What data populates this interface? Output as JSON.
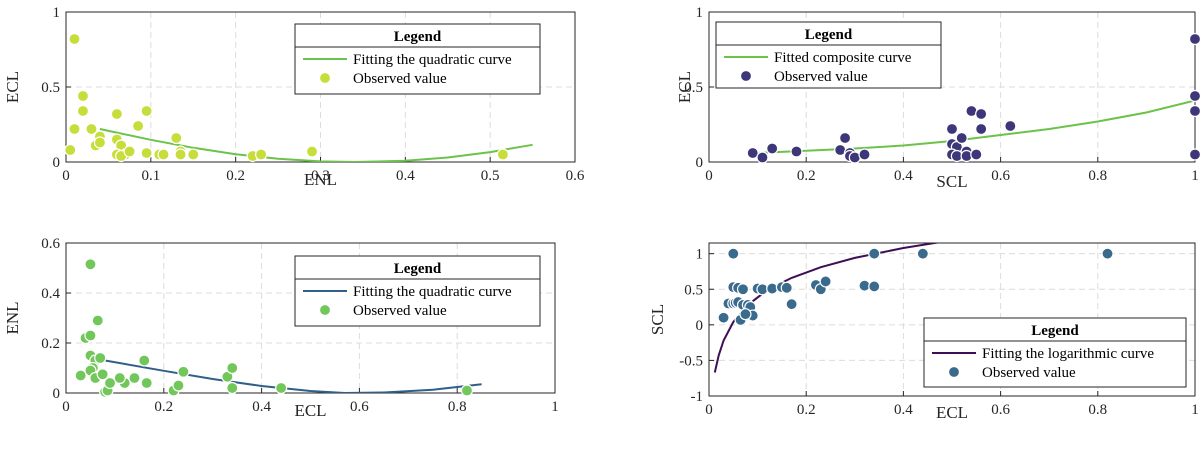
{
  "chart_data": [
    {
      "type": "scatter",
      "xlabel": "ENL",
      "ylabel": "ECL",
      "xlim": [
        0,
        0.6
      ],
      "ylim": [
        0,
        1
      ],
      "xticks": [
        "0",
        "0.1",
        "0.2",
        "0.3",
        "0.4",
        "0.5",
        "0.6"
      ],
      "yticks": [
        "0",
        "0.5",
        "1"
      ],
      "grid": true,
      "legend": {
        "title": "Legend",
        "placement": "top-right",
        "entries": [
          "Fitting the quadratic curve",
          "Observed value"
        ]
      },
      "fit": {
        "name": "Fitting the quadratic curve",
        "model": "quadratic",
        "color": "#6cc24a",
        "x": [
          0.04,
          0.1,
          0.15,
          0.2,
          0.25,
          0.3,
          0.34,
          0.4,
          0.45,
          0.5,
          0.55
        ],
        "y": [
          0.22,
          0.148,
          0.095,
          0.052,
          0.021,
          0.004,
          0.0,
          0.008,
          0.03,
          0.066,
          0.115
        ]
      },
      "series": [
        {
          "name": "Observed value",
          "color": "#c6dd3a",
          "x": [
            0.01,
            0.005,
            0.01,
            0.02,
            0.02,
            0.03,
            0.04,
            0.035,
            0.04,
            0.06,
            0.06,
            0.065,
            0.07,
            0.06,
            0.065,
            0.075,
            0.085,
            0.095,
            0.095,
            0.11,
            0.115,
            0.13,
            0.135,
            0.135,
            0.15,
            0.22,
            0.23,
            0.29,
            0.515
          ],
          "y": [
            0.82,
            0.08,
            0.22,
            0.44,
            0.34,
            0.22,
            0.17,
            0.11,
            0.13,
            0.32,
            0.15,
            0.11,
            0.05,
            0.05,
            0.04,
            0.07,
            0.24,
            0.34,
            0.06,
            0.05,
            0.05,
            0.16,
            0.07,
            0.05,
            0.05,
            0.04,
            0.05,
            0.07,
            0.05
          ]
        }
      ]
    },
    {
      "type": "scatter",
      "xlabel": "SCL",
      "ylabel": "ECL",
      "xlim": [
        0,
        1
      ],
      "ylim": [
        0,
        1
      ],
      "xticks": [
        "0",
        "0.2",
        "0.4",
        "0.6",
        "0.8",
        "1"
      ],
      "yticks": [
        "0",
        "0.5",
        "1"
      ],
      "grid": true,
      "legend": {
        "title": "Legend",
        "placement": "top-left",
        "entries": [
          "Fitted composite curve",
          "Observed value"
        ]
      },
      "fit": {
        "name": "Fitted composite curve",
        "model": "composite",
        "color": "#6cc24a",
        "x": [
          0.1,
          0.2,
          0.3,
          0.4,
          0.5,
          0.6,
          0.7,
          0.8,
          0.9,
          1.0
        ],
        "y": [
          0.06,
          0.075,
          0.09,
          0.11,
          0.14,
          0.18,
          0.22,
          0.27,
          0.33,
          0.41
        ]
      },
      "series": [
        {
          "name": "Observed value",
          "color": "#3d3779",
          "x": [
            0.09,
            0.11,
            0.13,
            0.18,
            0.27,
            0.28,
            0.29,
            0.29,
            0.3,
            0.32,
            0.5,
            0.5,
            0.51,
            0.5,
            0.51,
            0.52,
            0.53,
            0.53,
            0.54,
            0.55,
            0.56,
            0.56,
            0.62,
            1.0,
            1.0,
            1.0,
            1.0
          ],
          "y": [
            0.06,
            0.03,
            0.09,
            0.07,
            0.08,
            0.16,
            0.06,
            0.04,
            0.03,
            0.05,
            0.22,
            0.12,
            0.1,
            0.05,
            0.04,
            0.16,
            0.07,
            0.04,
            0.34,
            0.05,
            0.32,
            0.22,
            0.24,
            0.82,
            0.44,
            0.34,
            0.05
          ]
        }
      ]
    },
    {
      "type": "scatter",
      "xlabel": "ECL",
      "ylabel": "ENL",
      "xlim": [
        0,
        1
      ],
      "ylim": [
        0,
        0.6
      ],
      "xticks": [
        "0",
        "0.2",
        "0.4",
        "0.6",
        "0.8",
        "1"
      ],
      "yticks": [
        "0",
        "0.2",
        "0.4",
        "0.6"
      ],
      "grid": true,
      "legend": {
        "title": "Legend",
        "placement": "top-right",
        "entries": [
          "Fitting the quadratic curve",
          "Observed value"
        ]
      },
      "fit": {
        "name": "Fitting the quadratic curve",
        "model": "quadratic",
        "color": "#2f5f8a",
        "x": [
          0.08,
          0.2,
          0.3,
          0.4,
          0.5,
          0.57,
          0.65,
          0.75,
          0.85
        ],
        "y": [
          0.13,
          0.089,
          0.056,
          0.028,
          0.008,
          0.0,
          0.002,
          0.013,
          0.035
        ]
      },
      "series": [
        {
          "name": "Observed value",
          "color": "#72c75a",
          "x": [
            0.05,
            0.04,
            0.05,
            0.065,
            0.05,
            0.06,
            0.07,
            0.055,
            0.03,
            0.05,
            0.06,
            0.075,
            0.08,
            0.085,
            0.09,
            0.12,
            0.11,
            0.14,
            0.16,
            0.165,
            0.22,
            0.23,
            0.24,
            0.33,
            0.34,
            0.34,
            0.44,
            0.82
          ],
          "y": [
            0.515,
            0.22,
            0.23,
            0.29,
            0.15,
            0.13,
            0.14,
            0.1,
            0.07,
            0.09,
            0.06,
            0.075,
            0.005,
            0.01,
            0.04,
            0.04,
            0.06,
            0.06,
            0.13,
            0.04,
            0.01,
            0.03,
            0.085,
            0.065,
            0.1,
            0.02,
            0.02,
            0.01
          ]
        }
      ]
    },
    {
      "type": "scatter",
      "xlabel": "ECL",
      "ylabel": "SCL",
      "xlim": [
        0,
        1
      ],
      "ylim": [
        -1,
        1.15
      ],
      "xticks": [
        "0",
        "0.2",
        "0.4",
        "0.6",
        "0.8",
        "1"
      ],
      "yticks": [
        "-1",
        "-0.5",
        "0",
        "0.5",
        "1"
      ],
      "grid": true,
      "legend": {
        "title": "Legend",
        "placement": "bottom-right",
        "entries": [
          "Fitting the logarithmic curve",
          "Observed value"
        ]
      },
      "fit": {
        "name": "Fitting the logarithmic curve",
        "model": "logarithmic",
        "color": "#3f0f55",
        "x": [
          0.012,
          0.02,
          0.03,
          0.05,
          0.08,
          0.12,
          0.17,
          0.23,
          0.3,
          0.4,
          0.5,
          0.6
        ],
        "y": [
          -0.67,
          -0.43,
          -0.22,
          0.04,
          0.28,
          0.49,
          0.66,
          0.81,
          0.94,
          1.08,
          1.19,
          1.28
        ]
      },
      "series": [
        {
          "name": "Observed value",
          "color": "#3a6a8c",
          "x": [
            0.05,
            0.34,
            0.44,
            0.82,
            0.05,
            0.06,
            0.07,
            0.1,
            0.11,
            0.13,
            0.15,
            0.16,
            0.22,
            0.23,
            0.24,
            0.32,
            0.34,
            0.03,
            0.04,
            0.05,
            0.055,
            0.06,
            0.07,
            0.08,
            0.085,
            0.09,
            0.065,
            0.075,
            0.17
          ],
          "y": [
            1.0,
            1.0,
            1.0,
            1.0,
            0.53,
            0.52,
            0.5,
            0.51,
            0.5,
            0.51,
            0.53,
            0.52,
            0.56,
            0.5,
            0.61,
            0.55,
            0.54,
            0.1,
            0.3,
            0.3,
            0.31,
            0.32,
            0.28,
            0.28,
            0.25,
            0.13,
            0.07,
            0.15,
            0.29
          ]
        }
      ]
    }
  ]
}
